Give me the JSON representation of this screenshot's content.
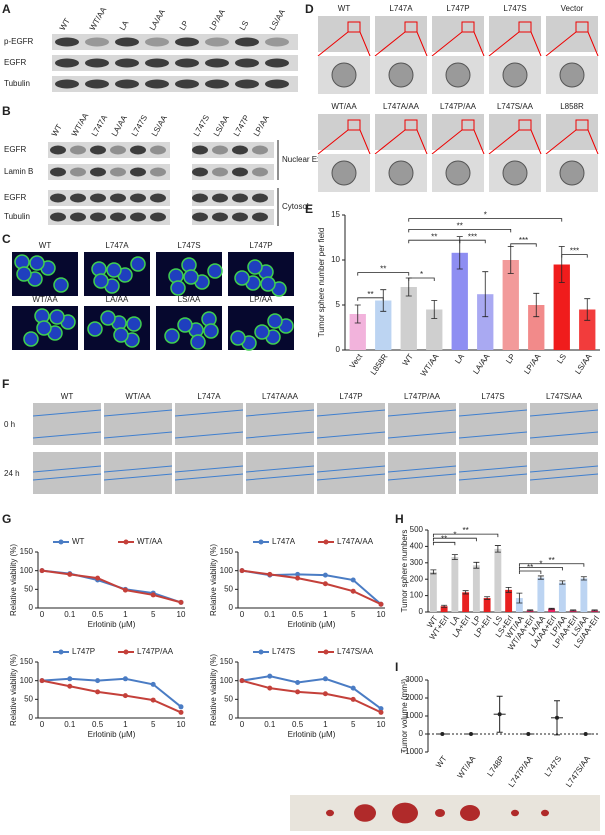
{
  "panel_labels": [
    "A",
    "B",
    "C",
    "D",
    "E",
    "F",
    "G",
    "H",
    "I"
  ],
  "blot_a": {
    "lanes": [
      "WT",
      "WT/AA",
      "LA",
      "LA/AA",
      "LP",
      "LP/AA",
      "LS",
      "LS/AA"
    ],
    "rows": [
      "p-EGFR",
      "EGFR",
      "Tubulin"
    ]
  },
  "blot_b": {
    "lanes": [
      "WT",
      "WT/AA",
      "L747A",
      "LA/AA",
      "L747S",
      "LS/AA",
      "L747S",
      "LS/AA",
      "L747P",
      "LP/AA"
    ],
    "rows": [
      "EGFR",
      "Lamin B",
      "EGFR",
      "Tubulin"
    ],
    "groups": [
      "Nuclear Extract",
      "Cytosol"
    ]
  },
  "panel_c": {
    "labels": [
      "WT",
      "L747A",
      "L747S",
      "L747P",
      "WT/AA",
      "LA/AA",
      "LS/AA",
      "LP/AA"
    ]
  },
  "panel_d": {
    "labels": [
      "WT",
      "L747A",
      "L747P",
      "L747S",
      "Vector",
      "WT/AA",
      "L747A/AA",
      "L747P/AA",
      "L747S/AA",
      "L858R"
    ]
  },
  "panel_f": {
    "labels": [
      "WT",
      "WT/AA",
      "L747A",
      "L747A/AA",
      "L747P",
      "L747P/AA",
      "L747S",
      "L747S/AA"
    ],
    "rows": [
      "0  h",
      "24  h"
    ]
  },
  "chart_data": [
    {
      "type": "bar",
      "ylabel": "Tumor sphere number per field",
      "categories": [
        "Vect",
        "L858R",
        "WT",
        "WT/AA",
        "LA",
        "LA/AA",
        "LP",
        "LP/AA",
        "LS",
        "LS/AA"
      ],
      "values": [
        4,
        5.5,
        7,
        4.5,
        10.8,
        6.2,
        10,
        5,
        9.5,
        4.5
      ],
      "errors": [
        1,
        1.2,
        1,
        1,
        1.8,
        2.5,
        1.5,
        1.3,
        2,
        1.2
      ],
      "colors": [
        "#f2b3dc",
        "#bcd4f2",
        "#cfcfcf",
        "#cfcfcf",
        "#8e8ef2",
        "#a9a9f2",
        "#f29a9a",
        "#f28a8a",
        "#f01c1c",
        "#f23c3c"
      ],
      "ylim": [
        0,
        15
      ],
      "yticks": [
        0,
        5,
        10,
        15
      ],
      "annotations": [
        "**",
        "**",
        "*",
        "**",
        "***",
        "**",
        "*",
        "***",
        "***"
      ]
    },
    {
      "type": "line",
      "ylabel": "Relative viability (%)",
      "xlabel": "Erlotinib (μM)",
      "categories": [
        "0",
        "0.1",
        "0.5",
        "1",
        "5",
        "10"
      ],
      "ylim": [
        0,
        150
      ],
      "yticks": [
        0,
        50,
        100,
        150
      ],
      "series": [
        {
          "name": "WT",
          "color": "#4a7cc4",
          "values": [
            100,
            92,
            75,
            50,
            40,
            15
          ]
        },
        {
          "name": "WT/AA",
          "color": "#c4403a",
          "values": [
            100,
            90,
            80,
            48,
            35,
            15
          ]
        }
      ]
    },
    {
      "type": "line",
      "ylabel": "Relative viability (%)",
      "xlabel": "Erlotinib (μM)",
      "categories": [
        "0",
        "0.1",
        "0.5",
        "1",
        "5",
        "10"
      ],
      "ylim": [
        0,
        150
      ],
      "yticks": [
        0,
        50,
        100,
        150
      ],
      "series": [
        {
          "name": "L747A",
          "color": "#4a7cc4",
          "values": [
            100,
            88,
            90,
            88,
            75,
            10
          ]
        },
        {
          "name": "L747A/AA",
          "color": "#c4403a",
          "values": [
            100,
            90,
            80,
            65,
            45,
            10
          ]
        }
      ]
    },
    {
      "type": "line",
      "ylabel": "Relative viability (%)",
      "xlabel": "Erlotinib (μM)",
      "categories": [
        "0",
        "0.1",
        "0.5",
        "1",
        "5",
        "10"
      ],
      "ylim": [
        0,
        150
      ],
      "yticks": [
        0,
        50,
        100,
        150
      ],
      "series": [
        {
          "name": "L747P",
          "color": "#4a7cc4",
          "values": [
            100,
            105,
            100,
            105,
            90,
            30
          ]
        },
        {
          "name": "L747P/AA",
          "color": "#c4403a",
          "values": [
            100,
            85,
            70,
            60,
            48,
            15
          ]
        }
      ]
    },
    {
      "type": "line",
      "ylabel": "Relative viability (%)",
      "xlabel": "Erlotinib (μM)",
      "categories": [
        "0",
        "0.1",
        "0.5",
        "1",
        "5",
        "10"
      ],
      "ylim": [
        0,
        150
      ],
      "yticks": [
        0,
        50,
        100,
        150
      ],
      "series": [
        {
          "name": "L747S",
          "color": "#4a7cc4",
          "values": [
            100,
            112,
            95,
            105,
            80,
            25
          ]
        },
        {
          "name": "L747S/AA",
          "color": "#c4403a",
          "values": [
            100,
            80,
            70,
            65,
            50,
            15
          ]
        }
      ]
    },
    {
      "type": "bar",
      "ylabel": "Tumor sphere numbers",
      "categories": [
        "WT",
        "WT+Erl",
        "LA",
        "LA+Erl",
        "LP",
        "LP+Erl",
        "LS",
        "LS+Erl",
        "WT/AA",
        "WT/AA+Erl",
        "LA/AA",
        "LA/AA+Erl",
        "LP/AA",
        "LP/AA+Erl",
        "LS/AA",
        "LS/AA+Erl"
      ],
      "values": [
        245,
        35,
        335,
        120,
        285,
        85,
        385,
        135,
        85,
        10,
        210,
        20,
        180,
        10,
        205,
        10
      ],
      "errors": [
        12,
        6,
        15,
        10,
        18,
        8,
        20,
        15,
        30,
        3,
        10,
        3,
        10,
        3,
        10,
        3
      ],
      "colors": [
        "#d0d0d0",
        "#e82020",
        "#d0d0d0",
        "#e82020",
        "#d0d0d0",
        "#e82020",
        "#d0d0d0",
        "#e82020",
        "#bcd4f2",
        "#e82060",
        "#bcd4f2",
        "#e82060",
        "#bcd4f2",
        "#e82060",
        "#bcd4f2",
        "#e82060"
      ],
      "ylim": [
        0,
        500
      ],
      "yticks": [
        0,
        100,
        200,
        300,
        400,
        500
      ],
      "annotations": [
        "**",
        "*",
        "**",
        "**",
        "*",
        "**"
      ]
    },
    {
      "type": "scatter",
      "ylabel": "Tumor volume (mm³)",
      "categories": [
        "WT",
        "WT/AA",
        "L748P",
        "L747P/AA",
        "L747S",
        "L747S/AA"
      ],
      "values": [
        0,
        0,
        1100,
        0,
        900,
        0
      ],
      "errors": [
        0,
        0,
        1000,
        0,
        950,
        0
      ],
      "ylim": [
        -1000,
        3000
      ],
      "yticks": [
        -1000,
        0,
        1000,
        2000,
        3000
      ]
    }
  ]
}
